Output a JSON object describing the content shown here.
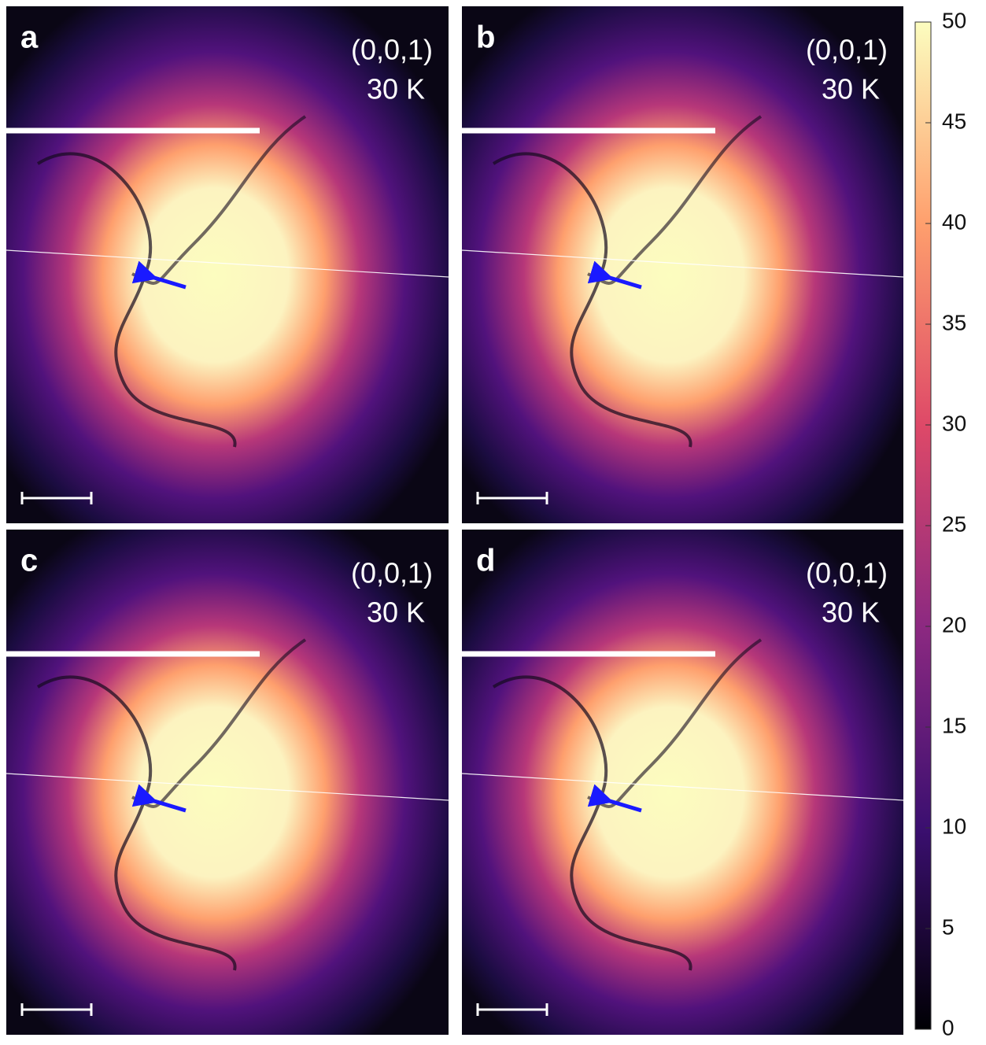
{
  "panels": [
    {
      "label": "a",
      "reflection": "(0,0,1)",
      "temperature": "30 K"
    },
    {
      "label": "b",
      "reflection": "(0,0,1)",
      "temperature": "30 K"
    },
    {
      "label": "c",
      "reflection": "(0,0,1)",
      "temperature": "30 K"
    },
    {
      "label": "d",
      "reflection": "(0,0,1)",
      "temperature": "30 K"
    }
  ],
  "colorbar": {
    "lim": [
      0,
      50
    ],
    "ticks": [
      0,
      5,
      10,
      15,
      20,
      25,
      30,
      35,
      40,
      45,
      50
    ]
  }
}
